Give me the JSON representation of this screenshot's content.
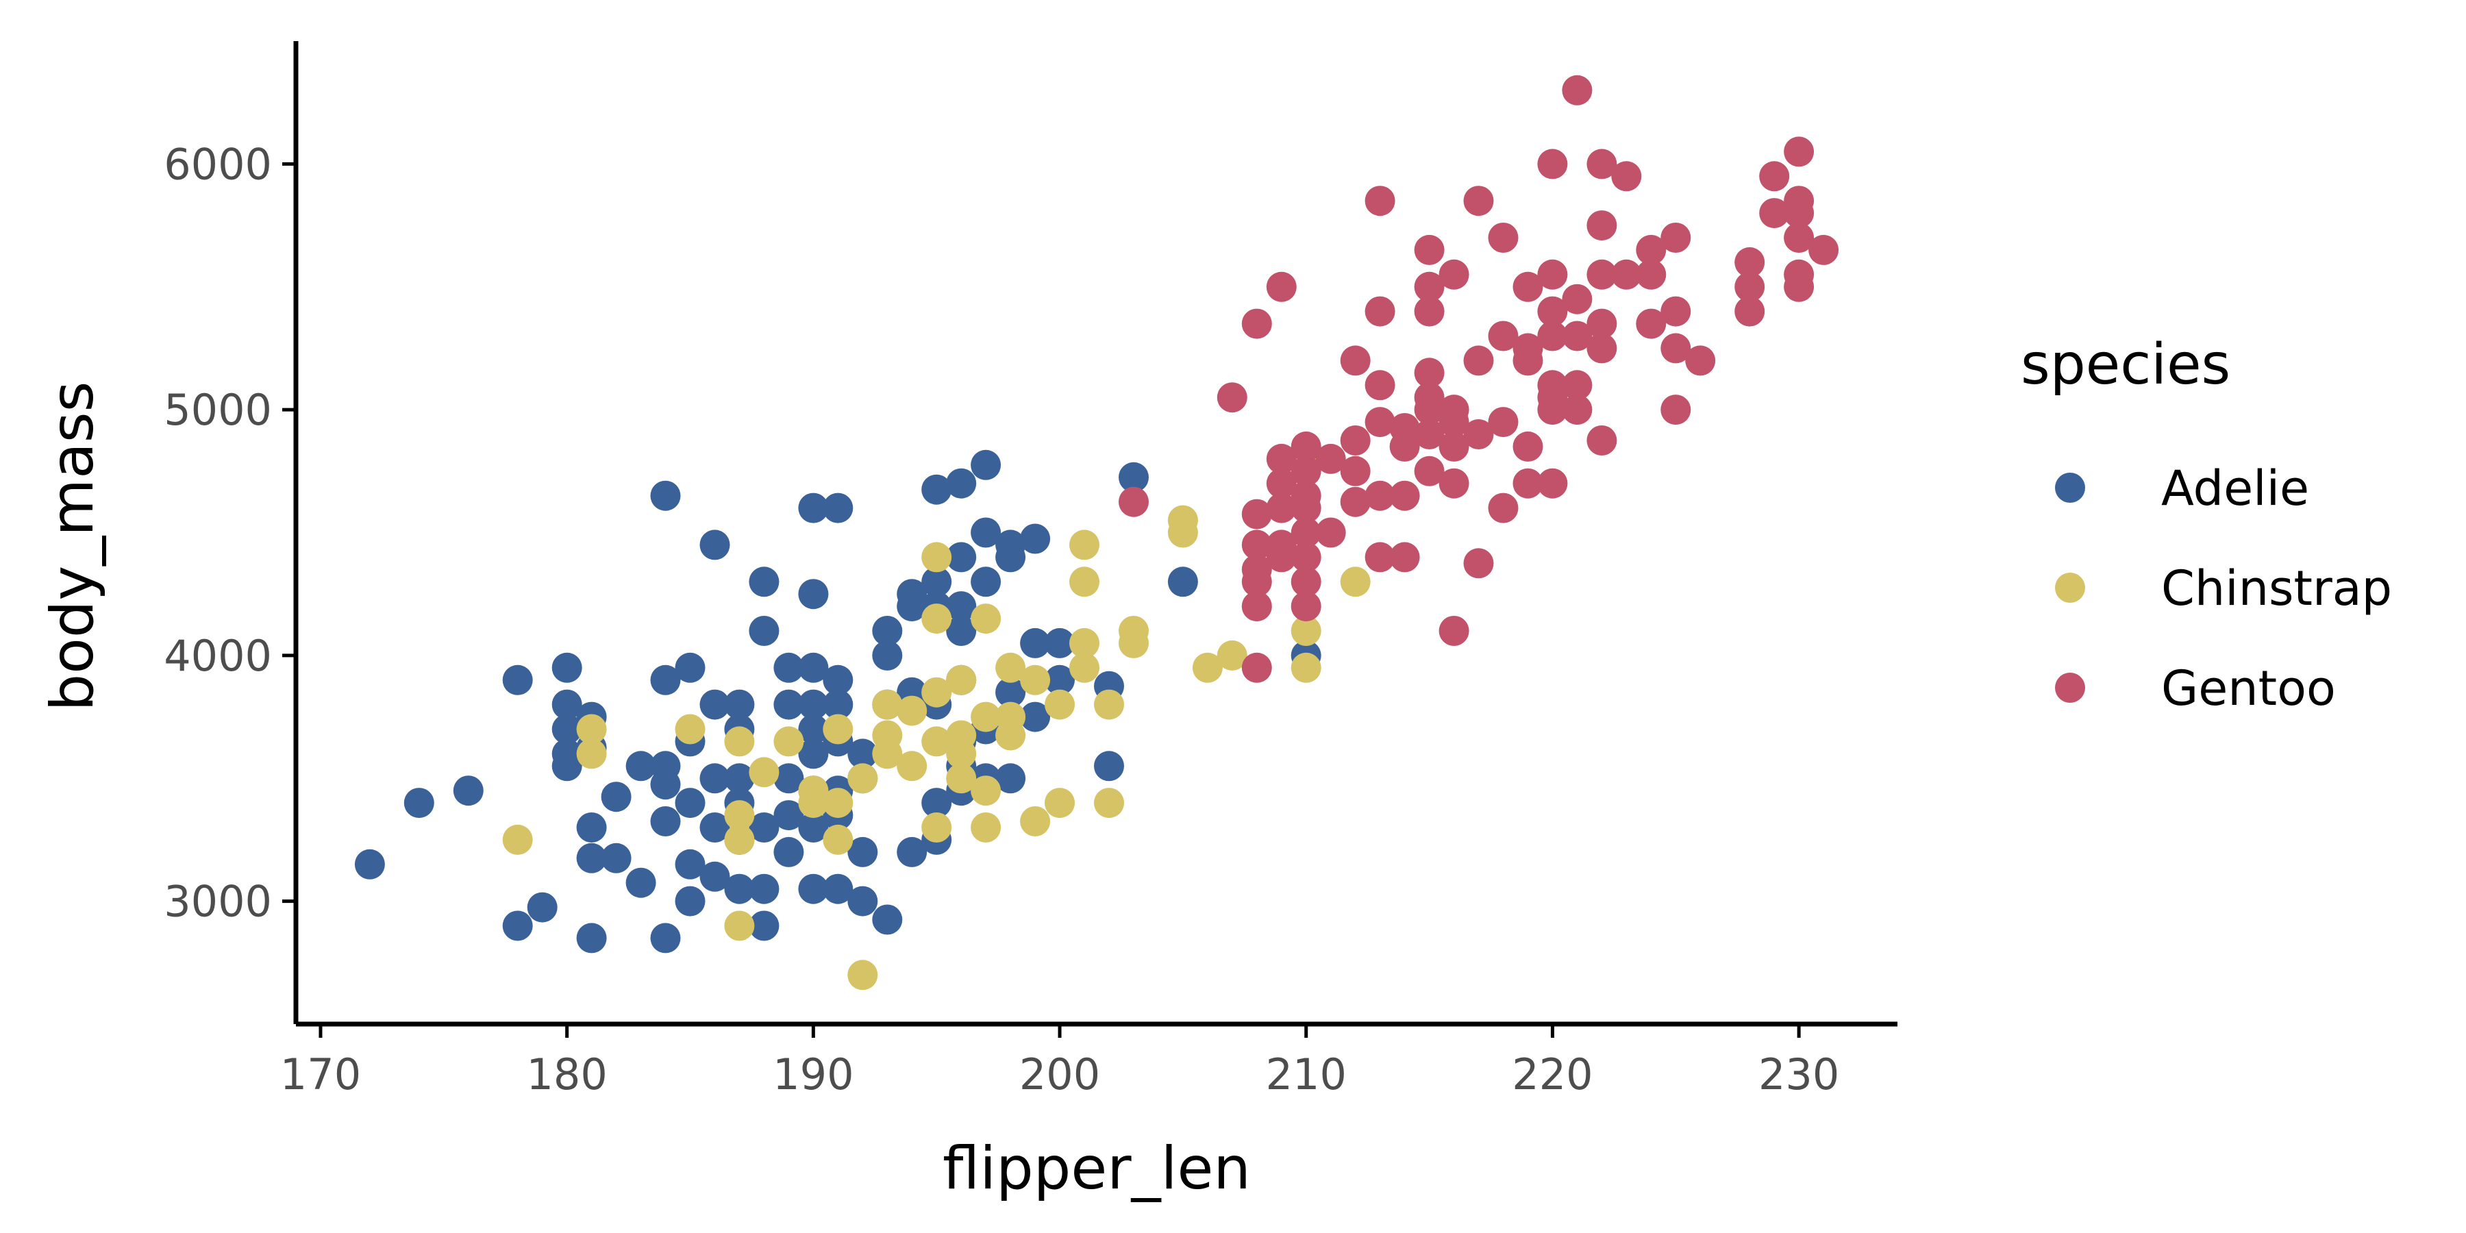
{
  "chart_data": {
    "type": "scatter",
    "title": "",
    "xlabel": "flipper_len",
    "ylabel": "body_mass",
    "xlim": [
      169,
      234
    ],
    "ylim": [
      2500,
      6500
    ],
    "xticks": [
      170,
      180,
      190,
      200,
      210,
      220,
      230
    ],
    "yticks": [
      3000,
      4000,
      5000,
      6000
    ],
    "grid": false,
    "legend": {
      "title": "species",
      "placement": "right"
    },
    "series": [
      {
        "name": "Adelie",
        "color": "#3a6299",
        "points": [
          [
            172,
            3150
          ],
          [
            174,
            3400
          ],
          [
            176,
            3450
          ],
          [
            178,
            3900
          ],
          [
            178,
            2900
          ],
          [
            179,
            2975
          ],
          [
            180,
            3950
          ],
          [
            180,
            3800
          ],
          [
            180,
            3700
          ],
          [
            180,
            3600
          ],
          [
            180,
            3550
          ],
          [
            181,
            3750
          ],
          [
            181,
            3625
          ],
          [
            181,
            3300
          ],
          [
            181,
            3175
          ],
          [
            181,
            2850
          ],
          [
            182,
            3425
          ],
          [
            182,
            3175
          ],
          [
            183,
            3550
          ],
          [
            183,
            3075
          ],
          [
            184,
            4650
          ],
          [
            184,
            3900
          ],
          [
            184,
            3550
          ],
          [
            184,
            3475
          ],
          [
            184,
            3325
          ],
          [
            184,
            2850
          ],
          [
            185,
            3950
          ],
          [
            185,
            3650
          ],
          [
            185,
            3400
          ],
          [
            185,
            3150
          ],
          [
            185,
            3000
          ],
          [
            186,
            4450
          ],
          [
            186,
            3800
          ],
          [
            186,
            3500
          ],
          [
            186,
            3300
          ],
          [
            186,
            3100
          ],
          [
            187,
            3800
          ],
          [
            187,
            3700
          ],
          [
            187,
            3500
          ],
          [
            187,
            3400
          ],
          [
            187,
            3250
          ],
          [
            187,
            3050
          ],
          [
            188,
            4300
          ],
          [
            188,
            4100
          ],
          [
            188,
            3300
          ],
          [
            188,
            3050
          ],
          [
            188,
            2900
          ],
          [
            189,
            3950
          ],
          [
            189,
            3800
          ],
          [
            189,
            3500
          ],
          [
            189,
            3350
          ],
          [
            189,
            3200
          ],
          [
            190,
            4600
          ],
          [
            190,
            4250
          ],
          [
            190,
            3950
          ],
          [
            190,
            3800
          ],
          [
            190,
            3700
          ],
          [
            190,
            3600
          ],
          [
            190,
            3450
          ],
          [
            190,
            3300
          ],
          [
            190,
            3050
          ],
          [
            191,
            4600
          ],
          [
            191,
            3900
          ],
          [
            191,
            3800
          ],
          [
            191,
            3650
          ],
          [
            191,
            3450
          ],
          [
            191,
            3350
          ],
          [
            191,
            3050
          ],
          [
            192,
            3600
          ],
          [
            192,
            3500
          ],
          [
            192,
            3200
          ],
          [
            192,
            3000
          ],
          [
            193,
            4100
          ],
          [
            193,
            4000
          ],
          [
            193,
            3800
          ],
          [
            193,
            2925
          ],
          [
            194,
            4250
          ],
          [
            194,
            4200
          ],
          [
            194,
            3850
          ],
          [
            194,
            3200
          ],
          [
            195,
            4675
          ],
          [
            195,
            4300
          ],
          [
            195,
            4200
          ],
          [
            195,
            3800
          ],
          [
            195,
            3400
          ],
          [
            195,
            3250
          ],
          [
            196,
            4700
          ],
          [
            196,
            4400
          ],
          [
            196,
            4200
          ],
          [
            196,
            4100
          ],
          [
            196,
            3900
          ],
          [
            196,
            3650
          ],
          [
            196,
            3550
          ],
          [
            196,
            3450
          ],
          [
            197,
            4775
          ],
          [
            197,
            4500
          ],
          [
            197,
            4300
          ],
          [
            197,
            3700
          ],
          [
            197,
            3500
          ],
          [
            198,
            4450
          ],
          [
            198,
            4400
          ],
          [
            198,
            3850
          ],
          [
            198,
            3500
          ],
          [
            199,
            4475
          ],
          [
            199,
            4050
          ],
          [
            199,
            3750
          ],
          [
            200,
            4050
          ],
          [
            200,
            3900
          ],
          [
            202,
            3875
          ],
          [
            202,
            3550
          ],
          [
            203,
            4725
          ],
          [
            205,
            4300
          ],
          [
            210,
            4000
          ]
        ]
      },
      {
        "name": "Chinstrap",
        "color": "#d5c366",
        "points": [
          [
            178,
            3250
          ],
          [
            181,
            3700
          ],
          [
            181,
            3600
          ],
          [
            185,
            3700
          ],
          [
            187,
            3650
          ],
          [
            187,
            3350
          ],
          [
            187,
            3250
          ],
          [
            187,
            2900
          ],
          [
            188,
            3525
          ],
          [
            189,
            3650
          ],
          [
            190,
            3450
          ],
          [
            190,
            3400
          ],
          [
            191,
            3700
          ],
          [
            191,
            3400
          ],
          [
            191,
            3250
          ],
          [
            192,
            3500
          ],
          [
            192,
            2700
          ],
          [
            193,
            3800
          ],
          [
            193,
            3675
          ],
          [
            193,
            3600
          ],
          [
            194,
            3775
          ],
          [
            194,
            3550
          ],
          [
            195,
            4400
          ],
          [
            195,
            4150
          ],
          [
            195,
            3850
          ],
          [
            195,
            3650
          ],
          [
            195,
            3300
          ],
          [
            196,
            3900
          ],
          [
            196,
            3675
          ],
          [
            196,
            3600
          ],
          [
            196,
            3500
          ],
          [
            197,
            4150
          ],
          [
            197,
            3750
          ],
          [
            197,
            3450
          ],
          [
            197,
            3300
          ],
          [
            198,
            3950
          ],
          [
            198,
            3750
          ],
          [
            198,
            3675
          ],
          [
            199,
            3900
          ],
          [
            199,
            3325
          ],
          [
            200,
            3800
          ],
          [
            200,
            3400
          ],
          [
            201,
            4450
          ],
          [
            201,
            4300
          ],
          [
            201,
            4050
          ],
          [
            201,
            3950
          ],
          [
            202,
            3800
          ],
          [
            202,
            3400
          ],
          [
            203,
            4100
          ],
          [
            203,
            4050
          ],
          [
            205,
            4550
          ],
          [
            205,
            4500
          ],
          [
            206,
            3950
          ],
          [
            207,
            4000
          ],
          [
            210,
            4800
          ],
          [
            210,
            4100
          ],
          [
            210,
            3950
          ],
          [
            212,
            4300
          ]
        ]
      },
      {
        "name": "Gentoo",
        "color": "#c2526a",
        "points": [
          [
            203,
            4625
          ],
          [
            207,
            5050
          ],
          [
            208,
            5350
          ],
          [
            208,
            4575
          ],
          [
            208,
            4450
          ],
          [
            208,
            4350
          ],
          [
            208,
            4300
          ],
          [
            208,
            4200
          ],
          [
            208,
            3950
          ],
          [
            209,
            5500
          ],
          [
            209,
            4800
          ],
          [
            209,
            4700
          ],
          [
            209,
            4600
          ],
          [
            209,
            4450
          ],
          [
            209,
            4400
          ],
          [
            210,
            4850
          ],
          [
            210,
            4750
          ],
          [
            210,
            4650
          ],
          [
            210,
            4600
          ],
          [
            210,
            4500
          ],
          [
            210,
            4400
          ],
          [
            210,
            4300
          ],
          [
            210,
            4200
          ],
          [
            211,
            4800
          ],
          [
            211,
            4500
          ],
          [
            212,
            5200
          ],
          [
            212,
            4875
          ],
          [
            212,
            4750
          ],
          [
            212,
            4625
          ],
          [
            213,
            5850
          ],
          [
            213,
            5400
          ],
          [
            213,
            5100
          ],
          [
            213,
            4950
          ],
          [
            213,
            4650
          ],
          [
            213,
            4400
          ],
          [
            214,
            4925
          ],
          [
            214,
            4850
          ],
          [
            214,
            4650
          ],
          [
            214,
            4400
          ],
          [
            215,
            5650
          ],
          [
            215,
            5500
          ],
          [
            215,
            5400
          ],
          [
            215,
            5150
          ],
          [
            215,
            5050
          ],
          [
            215,
            5000
          ],
          [
            215,
            4900
          ],
          [
            215,
            4750
          ],
          [
            216,
            5550
          ],
          [
            216,
            5000
          ],
          [
            216,
            4950
          ],
          [
            216,
            4850
          ],
          [
            216,
            4700
          ],
          [
            216,
            4100
          ],
          [
            217,
            5850
          ],
          [
            217,
            5200
          ],
          [
            217,
            4900
          ],
          [
            217,
            4375
          ],
          [
            218,
            5700
          ],
          [
            218,
            5300
          ],
          [
            218,
            4950
          ],
          [
            218,
            4600
          ],
          [
            219,
            5500
          ],
          [
            219,
            5250
          ],
          [
            219,
            5200
          ],
          [
            219,
            4850
          ],
          [
            219,
            4700
          ],
          [
            220,
            6000
          ],
          [
            220,
            5550
          ],
          [
            220,
            5400
          ],
          [
            220,
            5300
          ],
          [
            220,
            5100
          ],
          [
            220,
            5050
          ],
          [
            220,
            5000
          ],
          [
            220,
            4700
          ],
          [
            221,
            6300
          ],
          [
            221,
            5450
          ],
          [
            221,
            5300
          ],
          [
            221,
            5100
          ],
          [
            221,
            5000
          ],
          [
            222,
            6000
          ],
          [
            222,
            5750
          ],
          [
            222,
            5550
          ],
          [
            222,
            5350
          ],
          [
            222,
            5250
          ],
          [
            222,
            4875
          ],
          [
            223,
            5950
          ],
          [
            223,
            5550
          ],
          [
            224,
            5650
          ],
          [
            224,
            5350
          ],
          [
            224,
            5550
          ],
          [
            225,
            5700
          ],
          [
            225,
            5400
          ],
          [
            225,
            5250
          ],
          [
            225,
            5000
          ],
          [
            226,
            5200
          ],
          [
            228,
            5600
          ],
          [
            228,
            5500
          ],
          [
            228,
            5400
          ],
          [
            229,
            5950
          ],
          [
            229,
            5800
          ],
          [
            230,
            6050
          ],
          [
            230,
            5850
          ],
          [
            230,
            5800
          ],
          [
            230,
            5700
          ],
          [
            230,
            5550
          ],
          [
            230,
            5500
          ],
          [
            231,
            5650
          ]
        ]
      }
    ]
  }
}
